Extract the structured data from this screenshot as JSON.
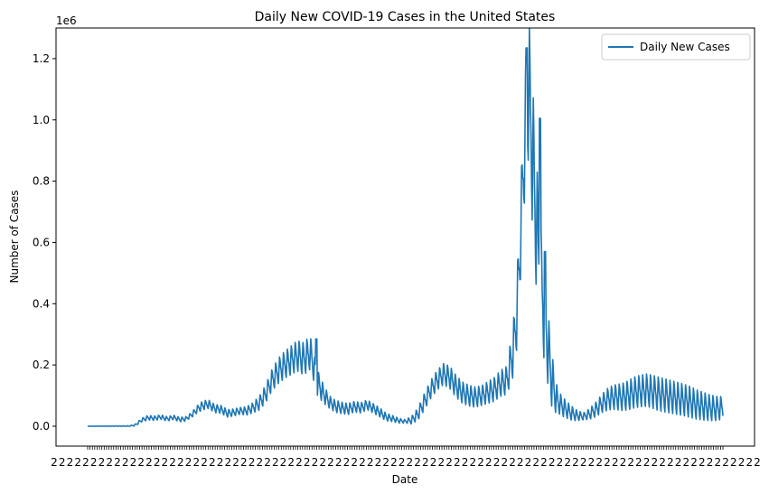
{
  "chart_data": {
    "type": "line",
    "title": "Daily New COVID-19 Cases in the United States",
    "xlabel": "Date",
    "ylabel": "Number of Cases",
    "y_multiplier_label": "1e6",
    "ylim": [
      -0.065,
      1.3
    ],
    "y_ticks": [
      0.0,
      0.2,
      0.4,
      0.6,
      0.8,
      1.0,
      1.2
    ],
    "y_tick_labels": [
      "0.0",
      "0.2",
      "0.4",
      "0.6",
      "0.8",
      "1.0",
      "1.2"
    ],
    "x_tick_labels_note": "dense, overlapping date labels (illegible)",
    "grid": false,
    "legend": {
      "placement": "top-right",
      "entries": [
        "Daily New Cases"
      ]
    },
    "colors": {
      "series": "#1f77b4"
    },
    "series": [
      {
        "name": "Daily New Cases",
        "unit": "millions of cases",
        "points": [
          [
            0.0,
            0.0
          ],
          [
            0.065,
            0.0
          ],
          [
            0.075,
            0.004
          ],
          [
            0.085,
            0.02
          ],
          [
            0.095,
            0.028
          ],
          [
            0.105,
            0.026
          ],
          [
            0.115,
            0.03
          ],
          [
            0.125,
            0.024
          ],
          [
            0.135,
            0.029
          ],
          [
            0.145,
            0.022
          ],
          [
            0.155,
            0.024
          ],
          [
            0.165,
            0.04
          ],
          [
            0.175,
            0.06
          ],
          [
            0.182,
            0.068
          ],
          [
            0.19,
            0.072
          ],
          [
            0.2,
            0.058
          ],
          [
            0.21,
            0.055
          ],
          [
            0.22,
            0.042
          ],
          [
            0.23,
            0.045
          ],
          [
            0.24,
            0.05
          ],
          [
            0.25,
            0.05
          ],
          [
            0.26,
            0.06
          ],
          [
            0.27,
            0.075
          ],
          [
            0.28,
            0.105
          ],
          [
            0.29,
            0.15
          ],
          [
            0.3,
            0.18
          ],
          [
            0.31,
            0.2
          ],
          [
            0.32,
            0.215
          ],
          [
            0.33,
            0.23
          ],
          [
            0.34,
            0.22
          ],
          [
            0.35,
            0.24
          ],
          [
            0.355,
            0.205
          ],
          [
            0.36,
            0.15
          ],
          [
            0.37,
            0.11
          ],
          [
            0.38,
            0.08
          ],
          [
            0.39,
            0.065
          ],
          [
            0.4,
            0.06
          ],
          [
            0.41,
            0.056
          ],
          [
            0.42,
            0.064
          ],
          [
            0.43,
            0.06
          ],
          [
            0.44,
            0.07
          ],
          [
            0.45,
            0.058
          ],
          [
            0.46,
            0.045
          ],
          [
            0.47,
            0.03
          ],
          [
            0.48,
            0.025
          ],
          [
            0.49,
            0.018
          ],
          [
            0.5,
            0.016
          ],
          [
            0.51,
            0.02
          ],
          [
            0.52,
            0.04
          ],
          [
            0.53,
            0.08
          ],
          [
            0.54,
            0.12
          ],
          [
            0.55,
            0.15
          ],
          [
            0.56,
            0.17
          ],
          [
            0.57,
            0.16
          ],
          [
            0.58,
            0.13
          ],
          [
            0.59,
            0.11
          ],
          [
            0.6,
            0.1
          ],
          [
            0.61,
            0.095
          ],
          [
            0.62,
            0.1
          ],
          [
            0.63,
            0.11
          ],
          [
            0.64,
            0.12
          ],
          [
            0.65,
            0.14
          ],
          [
            0.66,
            0.15
          ],
          [
            0.67,
            0.25
          ],
          [
            0.675,
            0.35
          ],
          [
            0.68,
            0.55
          ],
          [
            0.685,
            0.8
          ],
          [
            0.69,
            1.0
          ],
          [
            0.695,
            1.1
          ],
          [
            0.7,
            0.9
          ],
          [
            0.705,
            0.7
          ],
          [
            0.71,
            0.56
          ],
          [
            0.715,
            0.43
          ],
          [
            0.72,
            0.35
          ],
          [
            0.725,
            0.25
          ],
          [
            0.73,
            0.16
          ],
          [
            0.735,
            0.11
          ],
          [
            0.74,
            0.08
          ],
          [
            0.75,
            0.06
          ],
          [
            0.76,
            0.045
          ],
          [
            0.77,
            0.035
          ],
          [
            0.78,
            0.032
          ],
          [
            0.79,
            0.04
          ],
          [
            0.8,
            0.055
          ],
          [
            0.81,
            0.075
          ],
          [
            0.82,
            0.09
          ],
          [
            0.83,
            0.095
          ],
          [
            0.84,
            0.095
          ],
          [
            0.85,
            0.1
          ],
          [
            0.86,
            0.11
          ],
          [
            0.87,
            0.115
          ],
          [
            0.88,
            0.118
          ],
          [
            0.89,
            0.112
          ],
          [
            0.9,
            0.105
          ],
          [
            0.91,
            0.1
          ],
          [
            0.92,
            0.095
          ],
          [
            0.93,
            0.09
          ],
          [
            0.94,
            0.085
          ],
          [
            0.95,
            0.078
          ],
          [
            0.96,
            0.07
          ],
          [
            0.97,
            0.065
          ],
          [
            0.98,
            0.06
          ],
          [
            0.99,
            0.058
          ],
          [
            1.0,
            0.06
          ]
        ],
        "weekly_amplitude": [
          [
            0.0,
            0.0
          ],
          [
            0.07,
            0.002
          ],
          [
            0.09,
            0.008
          ],
          [
            0.16,
            0.008
          ],
          [
            0.18,
            0.016
          ],
          [
            0.24,
            0.012
          ],
          [
            0.26,
            0.018
          ],
          [
            0.3,
            0.045
          ],
          [
            0.35,
            0.06
          ],
          [
            0.38,
            0.022
          ],
          [
            0.46,
            0.016
          ],
          [
            0.5,
            0.006
          ],
          [
            0.53,
            0.03
          ],
          [
            0.57,
            0.04
          ],
          [
            0.62,
            0.035
          ],
          [
            0.66,
            0.05
          ],
          [
            0.68,
            0.14
          ],
          [
            0.7,
            0.26
          ],
          [
            0.72,
            0.16
          ],
          [
            0.74,
            0.04
          ],
          [
            0.78,
            0.012
          ],
          [
            0.82,
            0.04
          ],
          [
            0.86,
            0.055
          ],
          [
            0.9,
            0.06
          ],
          [
            0.95,
            0.055
          ],
          [
            1.0,
            0.04
          ]
        ],
        "peaks": [
          [
            0.691,
            1.235
          ],
          [
            0.712,
            1.005
          ],
          [
            0.72,
            0.57
          ],
          [
            0.36,
            0.285
          ]
        ]
      }
    ]
  }
}
